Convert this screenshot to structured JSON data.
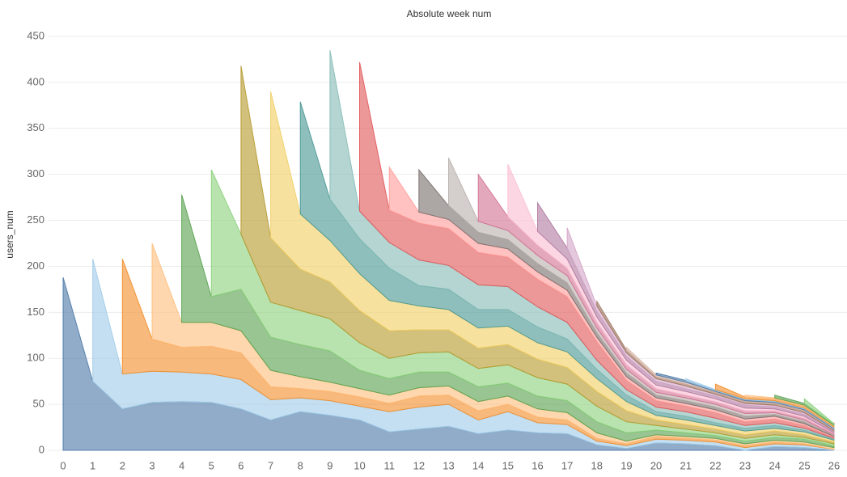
{
  "chart_data": {
    "type": "stacked_area",
    "title": "Absolute week num",
    "y_label": "users_num",
    "x": [
      0,
      1,
      2,
      3,
      4,
      5,
      6,
      7,
      8,
      9,
      10,
      11,
      12,
      13,
      14,
      15,
      16,
      17,
      18,
      19,
      20,
      21,
      22,
      23,
      24,
      25,
      26
    ],
    "xlim": [
      0,
      26
    ],
    "xticks": [
      0,
      1,
      2,
      3,
      4,
      5,
      6,
      7,
      8,
      9,
      10,
      11,
      12,
      13,
      14,
      15,
      16,
      17,
      18,
      19,
      20,
      21,
      22,
      23,
      24,
      25,
      26
    ],
    "ylim": [
      0,
      450
    ],
    "yticks": [
      0,
      50,
      100,
      150,
      200,
      250,
      300,
      350,
      400,
      450
    ],
    "grid": true,
    "series": [
      {
        "color": "#4e79a7",
        "values": [
          188,
          75,
          45,
          52,
          53,
          52,
          45,
          33,
          42,
          38,
          33,
          20,
          23,
          26,
          18,
          22,
          19,
          18,
          6,
          2,
          8,
          7,
          5,
          0,
          4,
          3,
          0
        ]
      },
      {
        "color": "#a0cbe8",
        "values": [
          null,
          133,
          38,
          34,
          32,
          31,
          32,
          22,
          15,
          16,
          15,
          22,
          24,
          24,
          15,
          20,
          11,
          10,
          4,
          3,
          4,
          4,
          4,
          3,
          3,
          3,
          1
        ]
      },
      {
        "color": "#f28e2b",
        "values": [
          null,
          null,
          125,
          35,
          27,
          30,
          29,
          14,
          10,
          10,
          10,
          9,
          12,
          10,
          10,
          8,
          6,
          5,
          3,
          2,
          3,
          2,
          2,
          2,
          2,
          1,
          0
        ]
      },
      {
        "color": "#ffbe7d",
        "values": [
          null,
          null,
          null,
          104,
          27,
          26,
          24,
          18,
          13,
          10,
          9,
          9,
          9,
          10,
          10,
          9,
          9,
          8,
          6,
          3,
          2,
          2,
          2,
          2,
          2,
          2,
          2
        ]
      },
      {
        "color": "#59a14f",
        "values": [
          null,
          null,
          null,
          null,
          139,
          28,
          45,
          36,
          35,
          34,
          20,
          18,
          17,
          15,
          16,
          14,
          14,
          13,
          12,
          9,
          5,
          4,
          3,
          3,
          3,
          3,
          2
        ]
      },
      {
        "color": "#8cd17d",
        "values": [
          null,
          null,
          null,
          null,
          null,
          138,
          60,
          38,
          37,
          35,
          30,
          22,
          21,
          22,
          20,
          20,
          20,
          18,
          17,
          12,
          5,
          4,
          3,
          3,
          3,
          2,
          2
        ]
      },
      {
        "color": "#b6992d",
        "values": [
          null,
          null,
          null,
          null,
          null,
          null,
          183,
          70,
          45,
          40,
          35,
          30,
          25,
          24,
          22,
          22,
          20,
          18,
          16,
          12,
          6,
          5,
          4,
          4,
          4,
          3,
          2
        ]
      },
      {
        "color": "#f1ce63",
        "values": [
          null,
          null,
          null,
          null,
          null,
          null,
          null,
          159,
          60,
          45,
          40,
          33,
          26,
          22,
          22,
          20,
          18,
          17,
          14,
          10,
          5,
          5,
          4,
          4,
          3,
          3,
          2
        ]
      },
      {
        "color": "#499894",
        "values": [
          null,
          null,
          null,
          null,
          null,
          null,
          null,
          null,
          122,
          45,
          38,
          35,
          22,
          22,
          20,
          18,
          17,
          14,
          10,
          7,
          4,
          4,
          3,
          3,
          3,
          2,
          1
        ]
      },
      {
        "color": "#86bcb6",
        "values": [
          null,
          null,
          null,
          null,
          null,
          null,
          null,
          null,
          null,
          162,
          30,
          28,
          28,
          26,
          27,
          25,
          22,
          18,
          10,
          6,
          5,
          5,
          5,
          3,
          3,
          2,
          1
        ]
      },
      {
        "color": "#e15759",
        "values": [
          null,
          null,
          null,
          null,
          null,
          null,
          null,
          null,
          null,
          null,
          162,
          35,
          40,
          40,
          35,
          32,
          30,
          28,
          20,
          10,
          7,
          6,
          6,
          4,
          4,
          3,
          1
        ]
      },
      {
        "color": "#ff9d9a",
        "values": [
          null,
          null,
          null,
          null,
          null,
          null,
          null,
          null,
          null,
          null,
          null,
          47,
          12,
          10,
          10,
          9,
          8,
          7,
          5,
          4,
          3,
          3,
          3,
          3,
          3,
          2,
          1
        ]
      },
      {
        "color": "#79706e",
        "values": [
          null,
          null,
          null,
          null,
          null,
          null,
          null,
          null,
          null,
          null,
          null,
          null,
          46,
          15,
          12,
          10,
          9,
          8,
          5,
          4,
          3,
          3,
          3,
          3,
          2,
          2,
          1
        ]
      },
      {
        "color": "#bab0ac",
        "values": [
          null,
          null,
          null,
          null,
          null,
          null,
          null,
          null,
          null,
          null,
          null,
          null,
          null,
          52,
          12,
          10,
          9,
          8,
          5,
          4,
          3,
          3,
          3,
          3,
          2,
          2,
          1
        ]
      },
      {
        "color": "#d37295",
        "values": [
          null,
          null,
          null,
          null,
          null,
          null,
          null,
          null,
          null,
          null,
          null,
          null,
          null,
          null,
          51,
          15,
          11,
          8,
          6,
          5,
          4,
          3,
          3,
          3,
          2,
          2,
          1
        ]
      },
      {
        "color": "#fabfd2",
        "values": [
          null,
          null,
          null,
          null,
          null,
          null,
          null,
          null,
          null,
          null,
          null,
          null,
          null,
          null,
          null,
          57,
          15,
          10,
          6,
          5,
          4,
          4,
          3,
          3,
          2,
          2,
          1
        ]
      },
      {
        "color": "#b07aa1",
        "values": [
          null,
          null,
          null,
          null,
          null,
          null,
          null,
          null,
          null,
          null,
          null,
          null,
          null,
          null,
          null,
          null,
          31,
          12,
          6,
          4,
          4,
          3,
          3,
          3,
          2,
          2,
          1
        ]
      },
      {
        "color": "#d4a6c8",
        "values": [
          null,
          null,
          null,
          null,
          null,
          null,
          null,
          null,
          null,
          null,
          null,
          null,
          null,
          null,
          null,
          null,
          null,
          22,
          6,
          4,
          3,
          3,
          2,
          2,
          2,
          2,
          1
        ]
      },
      {
        "color": "#9d7660",
        "values": [
          null,
          null,
          null,
          null,
          null,
          null,
          null,
          null,
          null,
          null,
          null,
          null,
          null,
          null,
          null,
          null,
          null,
          null,
          5,
          3,
          2,
          2,
          2,
          2,
          2,
          2,
          1
        ]
      },
      {
        "color": "#d7b5a6",
        "values": [
          null,
          null,
          null,
          null,
          null,
          null,
          null,
          null,
          null,
          null,
          null,
          null,
          null,
          null,
          null,
          null,
          null,
          null,
          null,
          3,
          2,
          2,
          1,
          1,
          1,
          1,
          1
        ]
      },
      {
        "color": "#4e79a7",
        "values": [
          null,
          null,
          null,
          null,
          null,
          null,
          null,
          null,
          null,
          null,
          null,
          null,
          null,
          null,
          null,
          null,
          null,
          null,
          null,
          null,
          2,
          2,
          1,
          1,
          1,
          1,
          1
        ]
      },
      {
        "color": "#a0cbe8",
        "values": [
          null,
          null,
          null,
          null,
          null,
          null,
          null,
          null,
          null,
          null,
          null,
          null,
          null,
          null,
          null,
          null,
          null,
          null,
          null,
          null,
          null,
          2,
          1,
          1,
          1,
          1,
          1
        ]
      },
      {
        "color": "#f28e2b",
        "values": [
          null,
          null,
          null,
          null,
          null,
          null,
          null,
          null,
          null,
          null,
          null,
          null,
          null,
          null,
          null,
          null,
          null,
          null,
          null,
          null,
          null,
          null,
          6,
          2,
          2,
          2,
          1
        ]
      },
      {
        "color": "#ffbe7d",
        "values": [
          null,
          null,
          null,
          null,
          null,
          null,
          null,
          null,
          null,
          null,
          null,
          null,
          null,
          null,
          null,
          null,
          null,
          null,
          null,
          null,
          null,
          null,
          null,
          2,
          1,
          1,
          1
        ]
      },
      {
        "color": "#59a14f",
        "values": [
          null,
          null,
          null,
          null,
          null,
          null,
          null,
          null,
          null,
          null,
          null,
          null,
          null,
          null,
          null,
          null,
          null,
          null,
          null,
          null,
          null,
          null,
          null,
          null,
          3,
          2,
          1
        ]
      },
      {
        "color": "#8cd17d",
        "values": [
          null,
          null,
          null,
          null,
          null,
          null,
          null,
          null,
          null,
          null,
          null,
          null,
          null,
          null,
          null,
          null,
          null,
          null,
          null,
          null,
          null,
          null,
          null,
          null,
          null,
          5,
          1
        ]
      },
      {
        "color": "#e15759",
        "values": [
          null,
          null,
          null,
          null,
          null,
          null,
          null,
          null,
          null,
          null,
          null,
          null,
          null,
          null,
          null,
          null,
          null,
          null,
          null,
          null,
          null,
          null,
          null,
          null,
          null,
          null,
          1
        ]
      }
    ]
  }
}
